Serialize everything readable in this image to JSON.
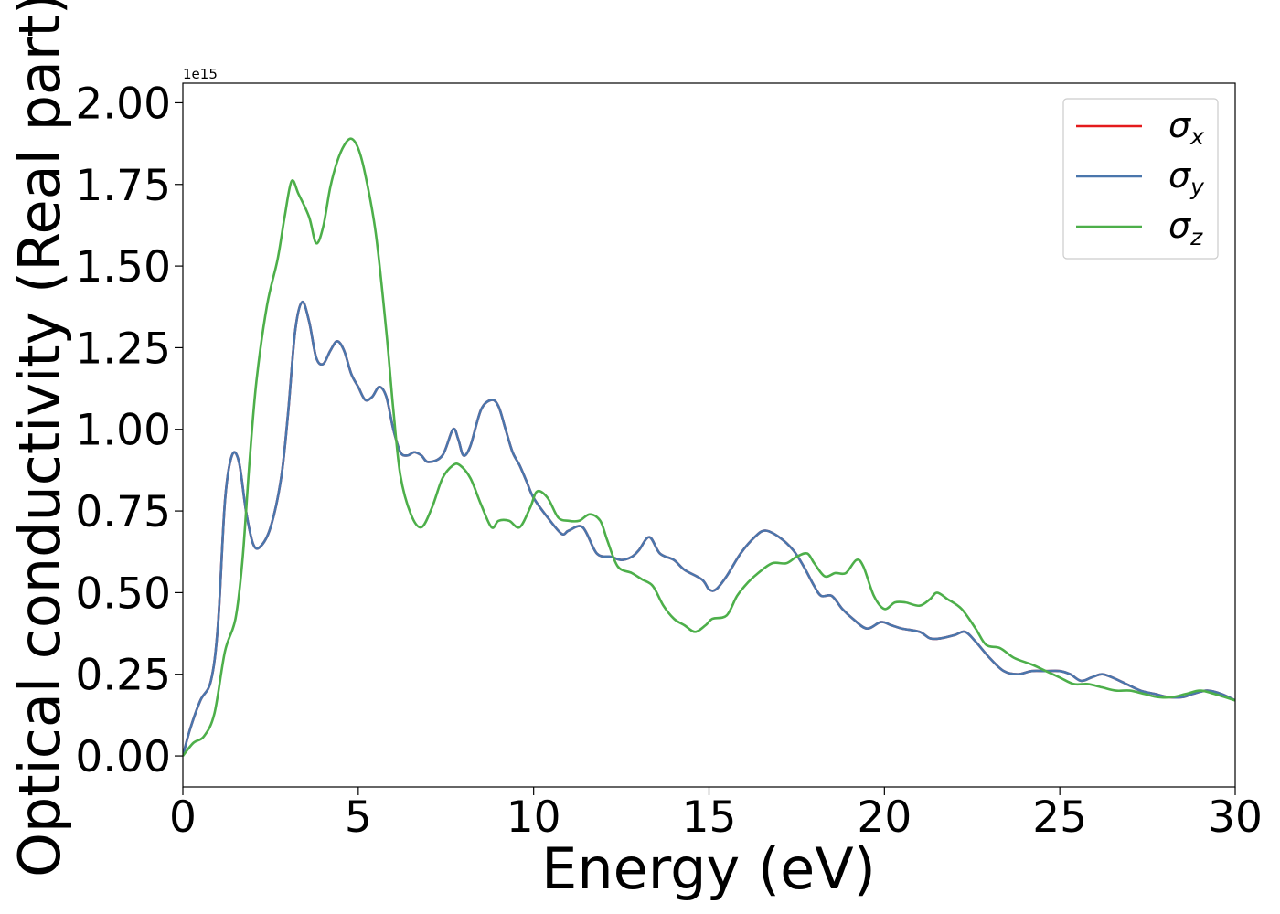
{
  "chart_data": {
    "type": "line",
    "xlabel": "Energy (eV)",
    "ylabel": "Optical conductivity (Real part)",
    "y_offset_text": "1e15",
    "xlim": [
      0,
      30
    ],
    "ylim": [
      -0.095,
      2.06
    ],
    "y_scale_multiplier": 1000000000000000.0,
    "x_ticks": [
      0,
      5,
      10,
      15,
      20,
      25,
      30
    ],
    "x_tick_labels": [
      "0",
      "5",
      "10",
      "15",
      "20",
      "25",
      "30"
    ],
    "y_ticks": [
      0.0,
      0.25,
      0.5,
      0.75,
      1.0,
      1.25,
      1.5,
      1.75,
      2.0
    ],
    "y_tick_labels": [
      "0.00",
      "0.25",
      "0.50",
      "0.75",
      "1.00",
      "1.25",
      "1.50",
      "1.75",
      "2.00"
    ],
    "grid": false,
    "legend_position": "top-right",
    "series": [
      {
        "name": "σx",
        "legend_symbol": "σ",
        "legend_subscript": "x",
        "color": "#e41a1c",
        "points": [
          [
            0,
            0
          ],
          [
            0.2,
            0.08
          ],
          [
            0.5,
            0.17
          ],
          [
            0.8,
            0.23
          ],
          [
            1.0,
            0.4
          ],
          [
            1.2,
            0.78
          ],
          [
            1.4,
            0.92
          ],
          [
            1.6,
            0.9
          ],
          [
            1.8,
            0.75
          ],
          [
            2.0,
            0.65
          ],
          [
            2.2,
            0.64
          ],
          [
            2.5,
            0.7
          ],
          [
            2.8,
            0.85
          ],
          [
            3.0,
            1.05
          ],
          [
            3.2,
            1.3
          ],
          [
            3.4,
            1.39
          ],
          [
            3.6,
            1.33
          ],
          [
            3.8,
            1.22
          ],
          [
            4.0,
            1.2
          ],
          [
            4.2,
            1.24
          ],
          [
            4.4,
            1.27
          ],
          [
            4.6,
            1.24
          ],
          [
            4.8,
            1.17
          ],
          [
            5.0,
            1.13
          ],
          [
            5.2,
            1.09
          ],
          [
            5.4,
            1.1
          ],
          [
            5.6,
            1.13
          ],
          [
            5.8,
            1.1
          ],
          [
            6.0,
            1.0
          ],
          [
            6.2,
            0.93
          ],
          [
            6.4,
            0.92
          ],
          [
            6.6,
            0.93
          ],
          [
            6.8,
            0.92
          ],
          [
            7.0,
            0.9
          ],
          [
            7.4,
            0.92
          ],
          [
            7.7,
            1.0
          ],
          [
            7.85,
            0.97
          ],
          [
            8.0,
            0.92
          ],
          [
            8.2,
            0.95
          ],
          [
            8.5,
            1.06
          ],
          [
            8.8,
            1.09
          ],
          [
            9.0,
            1.07
          ],
          [
            9.2,
            1.0
          ],
          [
            9.4,
            0.93
          ],
          [
            9.6,
            0.89
          ],
          [
            9.8,
            0.84
          ],
          [
            10.0,
            0.79
          ],
          [
            10.4,
            0.73
          ],
          [
            10.8,
            0.68
          ],
          [
            11.0,
            0.69
          ],
          [
            11.4,
            0.7
          ],
          [
            11.8,
            0.62
          ],
          [
            12.2,
            0.61
          ],
          [
            12.5,
            0.6
          ],
          [
            12.8,
            0.61
          ],
          [
            13.0,
            0.63
          ],
          [
            13.3,
            0.67
          ],
          [
            13.6,
            0.62
          ],
          [
            14.0,
            0.6
          ],
          [
            14.3,
            0.57
          ],
          [
            14.8,
            0.54
          ],
          [
            15.0,
            0.51
          ],
          [
            15.2,
            0.51
          ],
          [
            15.5,
            0.55
          ],
          [
            15.9,
            0.62
          ],
          [
            16.3,
            0.67
          ],
          [
            16.6,
            0.69
          ],
          [
            17.0,
            0.67
          ],
          [
            17.4,
            0.63
          ],
          [
            17.7,
            0.58
          ],
          [
            18.0,
            0.52
          ],
          [
            18.2,
            0.49
          ],
          [
            18.5,
            0.49
          ],
          [
            18.8,
            0.45
          ],
          [
            19.1,
            0.42
          ],
          [
            19.5,
            0.39
          ],
          [
            19.9,
            0.41
          ],
          [
            20.2,
            0.4
          ],
          [
            20.5,
            0.39
          ],
          [
            21.0,
            0.38
          ],
          [
            21.3,
            0.36
          ],
          [
            21.6,
            0.36
          ],
          [
            22.0,
            0.37
          ],
          [
            22.3,
            0.38
          ],
          [
            22.6,
            0.35
          ],
          [
            23.0,
            0.3
          ],
          [
            23.4,
            0.26
          ],
          [
            23.8,
            0.25
          ],
          [
            24.2,
            0.26
          ],
          [
            24.6,
            0.26
          ],
          [
            25.0,
            0.26
          ],
          [
            25.3,
            0.25
          ],
          [
            25.6,
            0.23
          ],
          [
            25.9,
            0.24
          ],
          [
            26.2,
            0.25
          ],
          [
            26.5,
            0.24
          ],
          [
            26.9,
            0.22
          ],
          [
            27.3,
            0.2
          ],
          [
            27.7,
            0.19
          ],
          [
            28.1,
            0.18
          ],
          [
            28.5,
            0.18
          ],
          [
            28.8,
            0.19
          ],
          [
            29.2,
            0.2
          ],
          [
            29.6,
            0.19
          ],
          [
            30.0,
            0.17
          ]
        ]
      },
      {
        "name": "σy",
        "legend_symbol": "σ",
        "legend_subscript": "y",
        "color": "#4a76ac",
        "points": [
          [
            0,
            0
          ],
          [
            0.2,
            0.08
          ],
          [
            0.5,
            0.17
          ],
          [
            0.8,
            0.23
          ],
          [
            1.0,
            0.4
          ],
          [
            1.2,
            0.78
          ],
          [
            1.4,
            0.92
          ],
          [
            1.6,
            0.9
          ],
          [
            1.8,
            0.75
          ],
          [
            2.0,
            0.65
          ],
          [
            2.2,
            0.64
          ],
          [
            2.5,
            0.7
          ],
          [
            2.8,
            0.85
          ],
          [
            3.0,
            1.05
          ],
          [
            3.2,
            1.3
          ],
          [
            3.4,
            1.39
          ],
          [
            3.6,
            1.33
          ],
          [
            3.8,
            1.22
          ],
          [
            4.0,
            1.2
          ],
          [
            4.2,
            1.24
          ],
          [
            4.4,
            1.27
          ],
          [
            4.6,
            1.24
          ],
          [
            4.8,
            1.17
          ],
          [
            5.0,
            1.13
          ],
          [
            5.2,
            1.09
          ],
          [
            5.4,
            1.1
          ],
          [
            5.6,
            1.13
          ],
          [
            5.8,
            1.1
          ],
          [
            6.0,
            1.0
          ],
          [
            6.2,
            0.93
          ],
          [
            6.4,
            0.92
          ],
          [
            6.6,
            0.93
          ],
          [
            6.8,
            0.92
          ],
          [
            7.0,
            0.9
          ],
          [
            7.4,
            0.92
          ],
          [
            7.7,
            1.0
          ],
          [
            7.85,
            0.97
          ],
          [
            8.0,
            0.92
          ],
          [
            8.2,
            0.95
          ],
          [
            8.5,
            1.06
          ],
          [
            8.8,
            1.09
          ],
          [
            9.0,
            1.07
          ],
          [
            9.2,
            1.0
          ],
          [
            9.4,
            0.93
          ],
          [
            9.6,
            0.89
          ],
          [
            9.8,
            0.84
          ],
          [
            10.0,
            0.79
          ],
          [
            10.4,
            0.73
          ],
          [
            10.8,
            0.68
          ],
          [
            11.0,
            0.69
          ],
          [
            11.4,
            0.7
          ],
          [
            11.8,
            0.62
          ],
          [
            12.2,
            0.61
          ],
          [
            12.5,
            0.6
          ],
          [
            12.8,
            0.61
          ],
          [
            13.0,
            0.63
          ],
          [
            13.3,
            0.67
          ],
          [
            13.6,
            0.62
          ],
          [
            14.0,
            0.6
          ],
          [
            14.3,
            0.57
          ],
          [
            14.8,
            0.54
          ],
          [
            15.0,
            0.51
          ],
          [
            15.2,
            0.51
          ],
          [
            15.5,
            0.55
          ],
          [
            15.9,
            0.62
          ],
          [
            16.3,
            0.67
          ],
          [
            16.6,
            0.69
          ],
          [
            17.0,
            0.67
          ],
          [
            17.4,
            0.63
          ],
          [
            17.7,
            0.58
          ],
          [
            18.0,
            0.52
          ],
          [
            18.2,
            0.49
          ],
          [
            18.5,
            0.49
          ],
          [
            18.8,
            0.45
          ],
          [
            19.1,
            0.42
          ],
          [
            19.5,
            0.39
          ],
          [
            19.9,
            0.41
          ],
          [
            20.2,
            0.4
          ],
          [
            20.5,
            0.39
          ],
          [
            21.0,
            0.38
          ],
          [
            21.3,
            0.36
          ],
          [
            21.6,
            0.36
          ],
          [
            22.0,
            0.37
          ],
          [
            22.3,
            0.38
          ],
          [
            22.6,
            0.35
          ],
          [
            23.0,
            0.3
          ],
          [
            23.4,
            0.26
          ],
          [
            23.8,
            0.25
          ],
          [
            24.2,
            0.26
          ],
          [
            24.6,
            0.26
          ],
          [
            25.0,
            0.26
          ],
          [
            25.3,
            0.25
          ],
          [
            25.6,
            0.23
          ],
          [
            25.9,
            0.24
          ],
          [
            26.2,
            0.25
          ],
          [
            26.5,
            0.24
          ],
          [
            26.9,
            0.22
          ],
          [
            27.3,
            0.2
          ],
          [
            27.7,
            0.19
          ],
          [
            28.1,
            0.18
          ],
          [
            28.5,
            0.18
          ],
          [
            28.8,
            0.19
          ],
          [
            29.2,
            0.2
          ],
          [
            29.6,
            0.19
          ],
          [
            30.0,
            0.17
          ]
        ]
      },
      {
        "name": "σz",
        "legend_symbol": "σ",
        "legend_subscript": "z",
        "color": "#4daf4a",
        "points": [
          [
            0,
            0
          ],
          [
            0.3,
            0.04
          ],
          [
            0.6,
            0.06
          ],
          [
            0.9,
            0.13
          ],
          [
            1.2,
            0.32
          ],
          [
            1.5,
            0.42
          ],
          [
            1.7,
            0.6
          ],
          [
            1.9,
            0.9
          ],
          [
            2.1,
            1.15
          ],
          [
            2.4,
            1.38
          ],
          [
            2.7,
            1.52
          ],
          [
            2.9,
            1.65
          ],
          [
            3.1,
            1.76
          ],
          [
            3.3,
            1.72
          ],
          [
            3.6,
            1.65
          ],
          [
            3.8,
            1.57
          ],
          [
            4.0,
            1.62
          ],
          [
            4.2,
            1.74
          ],
          [
            4.4,
            1.82
          ],
          [
            4.6,
            1.87
          ],
          [
            4.8,
            1.89
          ],
          [
            5.0,
            1.86
          ],
          [
            5.2,
            1.78
          ],
          [
            5.5,
            1.6
          ],
          [
            5.8,
            1.3
          ],
          [
            6.0,
            1.06
          ],
          [
            6.2,
            0.86
          ],
          [
            6.5,
            0.74
          ],
          [
            6.8,
            0.7
          ],
          [
            7.1,
            0.76
          ],
          [
            7.4,
            0.85
          ],
          [
            7.7,
            0.89
          ],
          [
            7.9,
            0.89
          ],
          [
            8.2,
            0.85
          ],
          [
            8.5,
            0.77
          ],
          [
            8.8,
            0.7
          ],
          [
            9.0,
            0.72
          ],
          [
            9.3,
            0.72
          ],
          [
            9.6,
            0.7
          ],
          [
            9.9,
            0.76
          ],
          [
            10.1,
            0.81
          ],
          [
            10.4,
            0.79
          ],
          [
            10.7,
            0.73
          ],
          [
            11.0,
            0.72
          ],
          [
            11.3,
            0.72
          ],
          [
            11.6,
            0.74
          ],
          [
            11.9,
            0.72
          ],
          [
            12.1,
            0.66
          ],
          [
            12.4,
            0.58
          ],
          [
            12.8,
            0.56
          ],
          [
            13.1,
            0.54
          ],
          [
            13.4,
            0.52
          ],
          [
            13.7,
            0.46
          ],
          [
            14.0,
            0.42
          ],
          [
            14.3,
            0.4
          ],
          [
            14.6,
            0.38
          ],
          [
            14.9,
            0.4
          ],
          [
            15.1,
            0.42
          ],
          [
            15.5,
            0.43
          ],
          [
            15.8,
            0.49
          ],
          [
            16.1,
            0.53
          ],
          [
            16.4,
            0.56
          ],
          [
            16.8,
            0.59
          ],
          [
            17.2,
            0.59
          ],
          [
            17.5,
            0.61
          ],
          [
            17.8,
            0.62
          ],
          [
            18.0,
            0.59
          ],
          [
            18.3,
            0.55
          ],
          [
            18.6,
            0.56
          ],
          [
            18.9,
            0.56
          ],
          [
            19.2,
            0.6
          ],
          [
            19.4,
            0.58
          ],
          [
            19.7,
            0.49
          ],
          [
            20.0,
            0.45
          ],
          [
            20.3,
            0.47
          ],
          [
            20.6,
            0.47
          ],
          [
            21.0,
            0.46
          ],
          [
            21.3,
            0.48
          ],
          [
            21.5,
            0.5
          ],
          [
            21.8,
            0.48
          ],
          [
            22.2,
            0.45
          ],
          [
            22.6,
            0.39
          ],
          [
            22.9,
            0.34
          ],
          [
            23.3,
            0.33
          ],
          [
            23.7,
            0.3
          ],
          [
            24.2,
            0.28
          ],
          [
            24.6,
            0.26
          ],
          [
            25.0,
            0.24
          ],
          [
            25.4,
            0.22
          ],
          [
            25.8,
            0.22
          ],
          [
            26.2,
            0.21
          ],
          [
            26.6,
            0.2
          ],
          [
            27.0,
            0.2
          ],
          [
            27.4,
            0.19
          ],
          [
            27.8,
            0.18
          ],
          [
            28.2,
            0.18
          ],
          [
            28.6,
            0.19
          ],
          [
            29.0,
            0.2
          ],
          [
            29.4,
            0.19
          ],
          [
            30.0,
            0.17
          ]
        ]
      }
    ]
  }
}
